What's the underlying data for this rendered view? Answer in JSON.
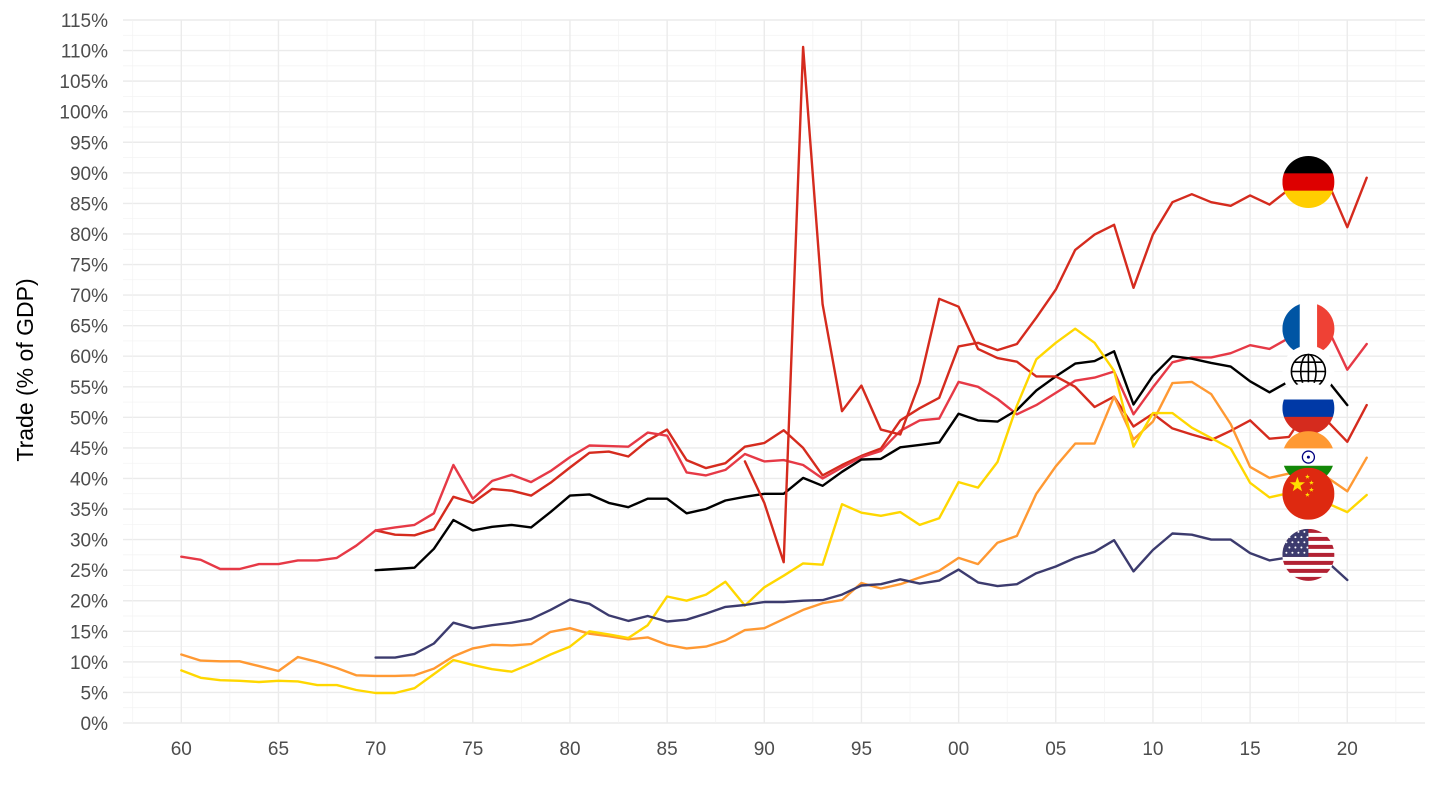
{
  "chart_data": {
    "type": "line",
    "title": "",
    "xlabel": "",
    "ylabel": "Trade (% of GDP)",
    "xlim": [
      1957,
      2024
    ],
    "ylim": [
      0,
      115
    ],
    "x_ticks": [
      1960,
      1965,
      1970,
      1975,
      1980,
      1985,
      1990,
      1995,
      2000,
      2005,
      2010,
      2015,
      2020
    ],
    "x_tick_labels": [
      "60",
      "65",
      "70",
      "75",
      "80",
      "85",
      "90",
      "95",
      "00",
      "05",
      "10",
      "15",
      "20"
    ],
    "y_ticks": [
      0,
      5,
      10,
      15,
      20,
      25,
      30,
      35,
      40,
      45,
      50,
      55,
      60,
      65,
      70,
      75,
      80,
      85,
      90,
      95,
      100,
      105,
      110,
      115
    ],
    "y_tick_labels": [
      "0%",
      "5%",
      "10%",
      "15%",
      "20%",
      "25%",
      "30%",
      "35%",
      "40%",
      "45%",
      "50%",
      "55%",
      "60%",
      "65%",
      "70%",
      "75%",
      "80%",
      "85%",
      "90%",
      "95%",
      "100%",
      "105%",
      "110%",
      "115%"
    ],
    "grid": true,
    "legend": "flag icons at line ends (right)",
    "series": [
      {
        "icon": "germany-flag-icon",
        "color": "#d52b1e",
        "start": 1970,
        "values": [
          31.5,
          30.8,
          30.7,
          31.7,
          37.0,
          36.0,
          38.3,
          38.0,
          37.2,
          39.3,
          41.8,
          44.2,
          44.4,
          43.6,
          46.2,
          48.0,
          43.0,
          41.7,
          42.5,
          45.2,
          45.8,
          47.9,
          45.0,
          40.5,
          42.2,
          43.7,
          44.9,
          49.5,
          51.5,
          53.2,
          61.6,
          62.2,
          61.0,
          62.0,
          66.3,
          70.9,
          77.4,
          79.9,
          81.5,
          71.2,
          79.9,
          85.2,
          86.5,
          85.2,
          84.6,
          86.3,
          84.8,
          87.3,
          88.0,
          88.5,
          81.1,
          89.2
        ]
      },
      {
        "icon": "france-flag-icon",
        "color": "#e63946",
        "start": 1960,
        "values": [
          27.2,
          26.7,
          25.2,
          25.2,
          26.0,
          26.0,
          26.6,
          26.6,
          27.0,
          29.0,
          31.5,
          32.0,
          32.4,
          34.3,
          42.2,
          36.7,
          39.6,
          40.6,
          39.4,
          41.2,
          43.5,
          45.4,
          45.3,
          45.2,
          47.5,
          47.0,
          41.0,
          40.5,
          41.4,
          44.0,
          42.8,
          43.0,
          42.2,
          40.0,
          41.8,
          43.5,
          44.5,
          47.8,
          49.5,
          49.8,
          55.8,
          55.0,
          53.0,
          50.5,
          52.0,
          54.0,
          56.0,
          56.5,
          57.5,
          50.5,
          54.9,
          59.0,
          59.8,
          59.8,
          60.5,
          61.8,
          61.2,
          63.0,
          64.0,
          64.5,
          57.8,
          62.0
        ]
      },
      {
        "icon": "world-globe-icon",
        "color": "#000000",
        "start": 1970,
        "values": [
          25.0,
          25.2,
          25.4,
          28.5,
          33.2,
          31.5,
          32.1,
          32.4,
          32.0,
          34.5,
          37.2,
          37.4,
          36.0,
          35.3,
          36.7,
          36.7,
          34.3,
          35.0,
          36.4,
          37.0,
          37.5,
          37.5,
          40.1,
          38.8,
          41.1,
          43.1,
          43.2,
          45.1,
          45.5,
          45.9,
          50.6,
          49.5,
          49.3,
          51.2,
          54.4,
          56.7,
          58.8,
          59.2,
          60.8,
          52.1,
          56.8,
          60.0,
          59.6,
          58.9,
          58.3,
          55.9,
          54.1,
          55.9,
          57.1,
          56.0,
          52.0
        ]
      },
      {
        "icon": "russia-flag-icon",
        "color": "#d52b1e",
        "start": 1989,
        "values": [
          42.8,
          36.0,
          26.3,
          110.6,
          68.5,
          51.0,
          55.2,
          48.0,
          47.2,
          55.7,
          69.4,
          68.1,
          61.2,
          59.7,
          59.1,
          56.7,
          56.7,
          55.0,
          51.7,
          53.4,
          48.5,
          50.6,
          48.2,
          47.2,
          46.3,
          47.8,
          49.5,
          46.5,
          46.8,
          51.6,
          49.3,
          46.0,
          52.0
        ]
      },
      {
        "icon": "india-flag-icon",
        "color": "#ff9933",
        "start": 1960,
        "values": [
          11.2,
          10.2,
          10.1,
          10.1,
          9.3,
          8.5,
          10.8,
          10.0,
          9.0,
          7.8,
          7.7,
          7.7,
          7.8,
          8.9,
          10.9,
          12.2,
          12.8,
          12.7,
          12.9,
          14.9,
          15.5,
          14.6,
          14.2,
          13.7,
          14.0,
          12.8,
          12.2,
          12.5,
          13.5,
          15.2,
          15.5,
          17.0,
          18.5,
          19.6,
          20.1,
          22.9,
          22.0,
          22.7,
          23.8,
          24.9,
          27.0,
          26.0,
          29.5,
          30.6,
          37.5,
          42.0,
          45.7,
          45.7,
          53.4,
          46.4,
          49.3,
          55.6,
          55.8,
          53.8,
          48.9,
          41.9,
          40.1,
          40.8,
          43.0,
          40.1,
          37.9,
          43.4
        ]
      },
      {
        "icon": "china-flag-icon",
        "color": "#ffd700",
        "start": 1960,
        "values": [
          8.6,
          7.4,
          7.0,
          6.9,
          6.7,
          6.9,
          6.8,
          6.2,
          6.2,
          5.4,
          4.9,
          4.9,
          5.7,
          8.0,
          10.3,
          9.5,
          8.8,
          8.4,
          9.7,
          11.2,
          12.5,
          15.0,
          14.5,
          13.9,
          16.0,
          20.7,
          20.0,
          21.0,
          23.1,
          19.2,
          22.2,
          24.1,
          26.1,
          25.9,
          35.8,
          34.4,
          33.9,
          34.5,
          32.4,
          33.5,
          39.4,
          38.5,
          42.7,
          51.9,
          59.5,
          62.2,
          64.5,
          62.2,
          57.6,
          45.2,
          50.7,
          50.7,
          48.3,
          46.6,
          44.9,
          39.3,
          36.9,
          37.6,
          37.6,
          35.9,
          34.5,
          37.3
        ]
      },
      {
        "icon": "usa-flag-icon",
        "color": "#3c3b6e",
        "start": 1970,
        "values": [
          10.7,
          10.7,
          11.3,
          13.0,
          16.4,
          15.5,
          16.0,
          16.4,
          17.0,
          18.5,
          20.2,
          19.5,
          17.6,
          16.7,
          17.5,
          16.6,
          16.9,
          17.9,
          19.0,
          19.3,
          19.8,
          19.8,
          20.0,
          20.1,
          21.0,
          22.5,
          22.7,
          23.5,
          22.8,
          23.3,
          25.1,
          23.0,
          22.4,
          22.7,
          24.5,
          25.6,
          27.0,
          28.0,
          29.9,
          24.8,
          28.3,
          31.0,
          30.8,
          30.0,
          30.0,
          27.8,
          26.6,
          27.1,
          27.5,
          26.3,
          23.4
        ]
      }
    ],
    "icon_markers": [
      {
        "icon": "germany-flag-icon",
        "x": 2018,
        "y": 88.5
      },
      {
        "icon": "france-flag-icon",
        "x": 2018,
        "y": 64.5
      },
      {
        "icon": "world-globe-icon",
        "x": 2018,
        "y": 57.5
      },
      {
        "icon": "russia-flag-icon",
        "x": 2018,
        "y": 51.5
      },
      {
        "icon": "india-flag-icon",
        "x": 2018,
        "y": 43.5
      },
      {
        "icon": "china-flag-icon",
        "x": 2018,
        "y": 37.5
      },
      {
        "icon": "usa-flag-icon",
        "x": 2018,
        "y": 27.5
      }
    ]
  }
}
